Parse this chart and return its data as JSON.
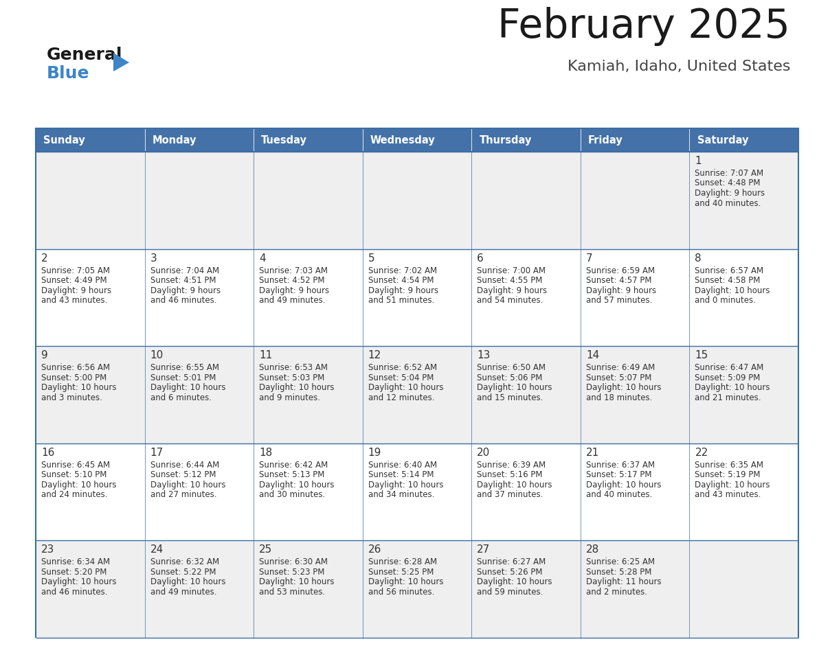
{
  "title": "February 2025",
  "subtitle": "Kamiah, Idaho, United States",
  "days_of_week": [
    "Sunday",
    "Monday",
    "Tuesday",
    "Wednesday",
    "Thursday",
    "Friday",
    "Saturday"
  ],
  "header_bg": "#4472a8",
  "header_text": "#ffffff",
  "row_bg_odd": "#efefef",
  "row_bg_even": "#ffffff",
  "border_color": "#3a6ea5",
  "text_color": "#333333",
  "day_number_color": "#333333",
  "title_color": "#1a1a1a",
  "subtitle_color": "#444444",
  "calendar_data": [
    [
      null,
      null,
      null,
      null,
      null,
      null,
      {
        "day": "1",
        "sunrise": "Sunrise: 7:07 AM",
        "sunset": "Sunset: 4:48 PM",
        "daylight": "Daylight: 9 hours",
        "daylight2": "and 40 minutes."
      }
    ],
    [
      {
        "day": "2",
        "sunrise": "Sunrise: 7:05 AM",
        "sunset": "Sunset: 4:49 PM",
        "daylight": "Daylight: 9 hours",
        "daylight2": "and 43 minutes."
      },
      {
        "day": "3",
        "sunrise": "Sunrise: 7:04 AM",
        "sunset": "Sunset: 4:51 PM",
        "daylight": "Daylight: 9 hours",
        "daylight2": "and 46 minutes."
      },
      {
        "day": "4",
        "sunrise": "Sunrise: 7:03 AM",
        "sunset": "Sunset: 4:52 PM",
        "daylight": "Daylight: 9 hours",
        "daylight2": "and 49 minutes."
      },
      {
        "day": "5",
        "sunrise": "Sunrise: 7:02 AM",
        "sunset": "Sunset: 4:54 PM",
        "daylight": "Daylight: 9 hours",
        "daylight2": "and 51 minutes."
      },
      {
        "day": "6",
        "sunrise": "Sunrise: 7:00 AM",
        "sunset": "Sunset: 4:55 PM",
        "daylight": "Daylight: 9 hours",
        "daylight2": "and 54 minutes."
      },
      {
        "day": "7",
        "sunrise": "Sunrise: 6:59 AM",
        "sunset": "Sunset: 4:57 PM",
        "daylight": "Daylight: 9 hours",
        "daylight2": "and 57 minutes."
      },
      {
        "day": "8",
        "sunrise": "Sunrise: 6:57 AM",
        "sunset": "Sunset: 4:58 PM",
        "daylight": "Daylight: 10 hours",
        "daylight2": "and 0 minutes."
      }
    ],
    [
      {
        "day": "9",
        "sunrise": "Sunrise: 6:56 AM",
        "sunset": "Sunset: 5:00 PM",
        "daylight": "Daylight: 10 hours",
        "daylight2": "and 3 minutes."
      },
      {
        "day": "10",
        "sunrise": "Sunrise: 6:55 AM",
        "sunset": "Sunset: 5:01 PM",
        "daylight": "Daylight: 10 hours",
        "daylight2": "and 6 minutes."
      },
      {
        "day": "11",
        "sunrise": "Sunrise: 6:53 AM",
        "sunset": "Sunset: 5:03 PM",
        "daylight": "Daylight: 10 hours",
        "daylight2": "and 9 minutes."
      },
      {
        "day": "12",
        "sunrise": "Sunrise: 6:52 AM",
        "sunset": "Sunset: 5:04 PM",
        "daylight": "Daylight: 10 hours",
        "daylight2": "and 12 minutes."
      },
      {
        "day": "13",
        "sunrise": "Sunrise: 6:50 AM",
        "sunset": "Sunset: 5:06 PM",
        "daylight": "Daylight: 10 hours",
        "daylight2": "and 15 minutes."
      },
      {
        "day": "14",
        "sunrise": "Sunrise: 6:49 AM",
        "sunset": "Sunset: 5:07 PM",
        "daylight": "Daylight: 10 hours",
        "daylight2": "and 18 minutes."
      },
      {
        "day": "15",
        "sunrise": "Sunrise: 6:47 AM",
        "sunset": "Sunset: 5:09 PM",
        "daylight": "Daylight: 10 hours",
        "daylight2": "and 21 minutes."
      }
    ],
    [
      {
        "day": "16",
        "sunrise": "Sunrise: 6:45 AM",
        "sunset": "Sunset: 5:10 PM",
        "daylight": "Daylight: 10 hours",
        "daylight2": "and 24 minutes."
      },
      {
        "day": "17",
        "sunrise": "Sunrise: 6:44 AM",
        "sunset": "Sunset: 5:12 PM",
        "daylight": "Daylight: 10 hours",
        "daylight2": "and 27 minutes."
      },
      {
        "day": "18",
        "sunrise": "Sunrise: 6:42 AM",
        "sunset": "Sunset: 5:13 PM",
        "daylight": "Daylight: 10 hours",
        "daylight2": "and 30 minutes."
      },
      {
        "day": "19",
        "sunrise": "Sunrise: 6:40 AM",
        "sunset": "Sunset: 5:14 PM",
        "daylight": "Daylight: 10 hours",
        "daylight2": "and 34 minutes."
      },
      {
        "day": "20",
        "sunrise": "Sunrise: 6:39 AM",
        "sunset": "Sunset: 5:16 PM",
        "daylight": "Daylight: 10 hours",
        "daylight2": "and 37 minutes."
      },
      {
        "day": "21",
        "sunrise": "Sunrise: 6:37 AM",
        "sunset": "Sunset: 5:17 PM",
        "daylight": "Daylight: 10 hours",
        "daylight2": "and 40 minutes."
      },
      {
        "day": "22",
        "sunrise": "Sunrise: 6:35 AM",
        "sunset": "Sunset: 5:19 PM",
        "daylight": "Daylight: 10 hours",
        "daylight2": "and 43 minutes."
      }
    ],
    [
      {
        "day": "23",
        "sunrise": "Sunrise: 6:34 AM",
        "sunset": "Sunset: 5:20 PM",
        "daylight": "Daylight: 10 hours",
        "daylight2": "and 46 minutes."
      },
      {
        "day": "24",
        "sunrise": "Sunrise: 6:32 AM",
        "sunset": "Sunset: 5:22 PM",
        "daylight": "Daylight: 10 hours",
        "daylight2": "and 49 minutes."
      },
      {
        "day": "25",
        "sunrise": "Sunrise: 6:30 AM",
        "sunset": "Sunset: 5:23 PM",
        "daylight": "Daylight: 10 hours",
        "daylight2": "and 53 minutes."
      },
      {
        "day": "26",
        "sunrise": "Sunrise: 6:28 AM",
        "sunset": "Sunset: 5:25 PM",
        "daylight": "Daylight: 10 hours",
        "daylight2": "and 56 minutes."
      },
      {
        "day": "27",
        "sunrise": "Sunrise: 6:27 AM",
        "sunset": "Sunset: 5:26 PM",
        "daylight": "Daylight: 10 hours",
        "daylight2": "and 59 minutes."
      },
      {
        "day": "28",
        "sunrise": "Sunrise: 6:25 AM",
        "sunset": "Sunset: 5:28 PM",
        "daylight": "Daylight: 11 hours",
        "daylight2": "and 2 minutes."
      },
      null
    ]
  ],
  "logo_color_general": "#1a1a1a",
  "logo_color_blue": "#3d85c8",
  "logo_triangle_color": "#3d85c8"
}
